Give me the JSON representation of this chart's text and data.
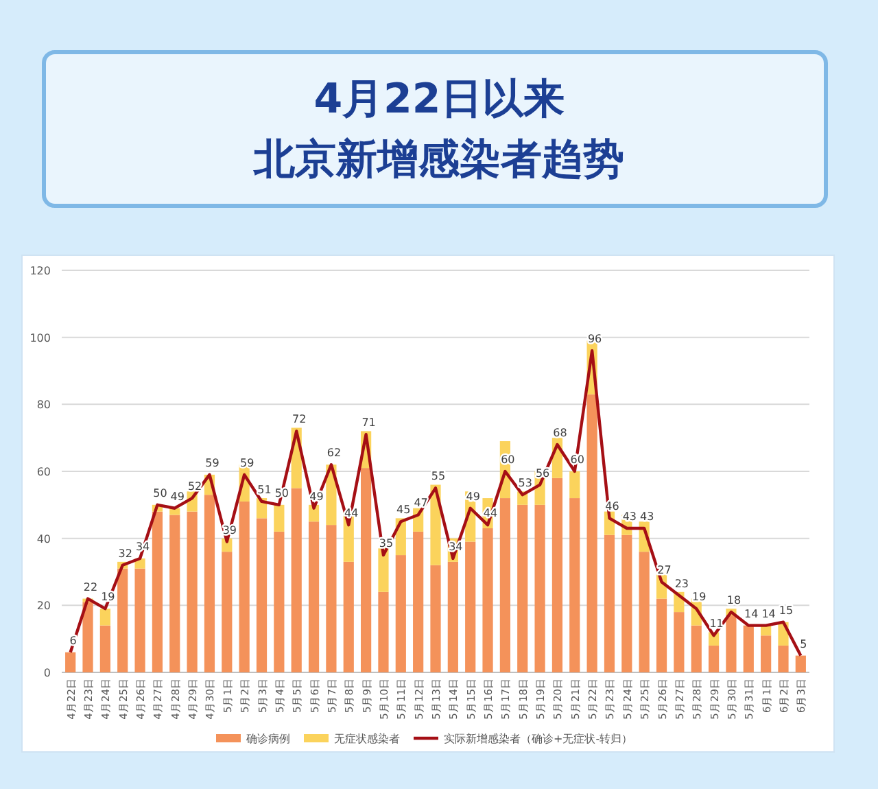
{
  "chart_data": {
    "type": "bar",
    "title": "4月22日以来",
    "subtitle": "北京新增感染者趋势",
    "stacked": true,
    "grid": "y",
    "legend": "bottom",
    "ylim": [
      0,
      120
    ],
    "yticks": [
      0,
      20,
      40,
      60,
      80,
      100,
      120
    ],
    "categories": [
      "4月22日",
      "4月23日",
      "4月24日",
      "4月25日",
      "4月26日",
      "4月27日",
      "4月28日",
      "4月29日",
      "4月30日",
      "5月1日",
      "5月2日",
      "5月3日",
      "5月4日",
      "5月5日",
      "5月6日",
      "5月7日",
      "5月8日",
      "5月9日",
      "5月10日",
      "5月11日",
      "5月12日",
      "5月13日",
      "5月14日",
      "5月15日",
      "5月16日",
      "5月17日",
      "5月18日",
      "5月19日",
      "5月20日",
      "5月21日",
      "5月22日",
      "5月23日",
      "5月24日",
      "5月25日",
      "5月26日",
      "5月27日",
      "5月28日",
      "5月29日",
      "5月30日",
      "5月31日",
      "6月1日",
      "6月2日",
      "6月3日"
    ],
    "series": [
      {
        "name": "确诊病例",
        "color": "#f4925a",
        "values": [
          6,
          21,
          14,
          31,
          31,
          48,
          47,
          48,
          53,
          36,
          51,
          46,
          42,
          55,
          45,
          44,
          33,
          61,
          24,
          35,
          42,
          32,
          33,
          39,
          43,
          52,
          50,
          50,
          58,
          52,
          83,
          41,
          41,
          36,
          22,
          18,
          14,
          8,
          17,
          14,
          11,
          8,
          5
        ]
      },
      {
        "name": "无症状感染者",
        "color": "#fbd35c",
        "values": [
          0,
          1,
          5,
          2,
          3,
          2,
          2,
          6,
          6,
          4,
          11,
          6,
          8,
          18,
          5,
          18,
          15,
          11,
          13,
          11,
          7,
          24,
          7,
          15,
          9,
          17,
          4,
          10,
          12,
          8,
          16,
          7,
          6,
          9,
          8,
          6,
          8,
          4,
          2,
          0,
          3,
          7,
          0
        ]
      },
      {
        "name": "实际新增感染者（确诊+无症状-转归）",
        "type": "line",
        "color": "#a50f15",
        "values": [
          6,
          22,
          19,
          32,
          34,
          50,
          49,
          52,
          59,
          39,
          59,
          51,
          50,
          72,
          49,
          62,
          44,
          71,
          35,
          45,
          47,
          55,
          34,
          49,
          44,
          60,
          53,
          56,
          68,
          60,
          96,
          46,
          43,
          43,
          27,
          23,
          19,
          11,
          18,
          14,
          14,
          15,
          5
        ],
        "value_labels": [
          "6",
          "22",
          "19",
          "32",
          "34",
          "50",
          "49",
          "52",
          "59",
          "39",
          "59",
          "51",
          "50",
          "72",
          "49",
          "62",
          "44",
          "71",
          "35",
          "45",
          "47",
          "55",
          "34",
          "49",
          "44",
          "60",
          "53",
          "56",
          "68",
          "60",
          "96",
          "46",
          "43",
          "43",
          "27",
          "23",
          "19",
          "11",
          "18",
          "14",
          "14",
          "15",
          "5"
        ]
      }
    ]
  }
}
